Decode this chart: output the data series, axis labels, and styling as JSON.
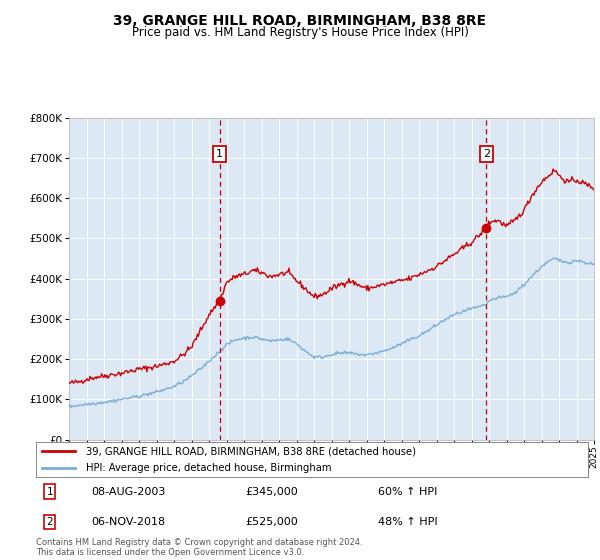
{
  "title": "39, GRANGE HILL ROAD, BIRMINGHAM, B38 8RE",
  "subtitle": "Price paid vs. HM Land Registry's House Price Index (HPI)",
  "title_fontsize": 10,
  "subtitle_fontsize": 8.5,
  "bg_color": "#dce9f5",
  "legend_label_red": "39, GRANGE HILL ROAD, BIRMINGHAM, B38 8RE (detached house)",
  "legend_label_blue": "HPI: Average price, detached house, Birmingham",
  "annotation1_date": "08-AUG-2003",
  "annotation1_price": "£345,000",
  "annotation1_hpi": "60% ↑ HPI",
  "annotation1_year": 2003.6,
  "annotation1_value": 345000,
  "annotation2_date": "06-NOV-2018",
  "annotation2_price": "£525,000",
  "annotation2_hpi": "48% ↑ HPI",
  "annotation2_year": 2018.85,
  "annotation2_value": 525000,
  "footer": "Contains HM Land Registry data © Crown copyright and database right 2024.\nThis data is licensed under the Open Government Licence v3.0.",
  "ylim": [
    0,
    800000
  ],
  "yticks": [
    0,
    100000,
    200000,
    300000,
    400000,
    500000,
    600000,
    700000,
    800000
  ],
  "red_color": "#cc0000",
  "blue_color": "#7aaed6",
  "red_keypoints": [
    [
      1995.0,
      140000
    ],
    [
      1995.5,
      143000
    ],
    [
      1996.0,
      150000
    ],
    [
      1996.5,
      155000
    ],
    [
      1997.0,
      158000
    ],
    [
      1997.5,
      162000
    ],
    [
      1998.0,
      165000
    ],
    [
      1998.5,
      170000
    ],
    [
      1999.0,
      175000
    ],
    [
      1999.5,
      178000
    ],
    [
      2000.0,
      182000
    ],
    [
      2000.5,
      188000
    ],
    [
      2001.0,
      195000
    ],
    [
      2001.5,
      210000
    ],
    [
      2002.0,
      230000
    ],
    [
      2002.5,
      270000
    ],
    [
      2003.0,
      310000
    ],
    [
      2003.6,
      345000
    ],
    [
      2004.0,
      390000
    ],
    [
      2004.5,
      405000
    ],
    [
      2005.0,
      410000
    ],
    [
      2005.5,
      420000
    ],
    [
      2006.0,
      415000
    ],
    [
      2006.5,
      405000
    ],
    [
      2007.0,
      410000
    ],
    [
      2007.5,
      415000
    ],
    [
      2008.0,
      395000
    ],
    [
      2008.5,
      375000
    ],
    [
      2009.0,
      355000
    ],
    [
      2009.5,
      360000
    ],
    [
      2010.0,
      375000
    ],
    [
      2010.5,
      385000
    ],
    [
      2011.0,
      395000
    ],
    [
      2011.5,
      385000
    ],
    [
      2012.0,
      375000
    ],
    [
      2012.5,
      380000
    ],
    [
      2013.0,
      385000
    ],
    [
      2013.5,
      390000
    ],
    [
      2014.0,
      395000
    ],
    [
      2014.5,
      400000
    ],
    [
      2015.0,
      410000
    ],
    [
      2015.5,
      420000
    ],
    [
      2016.0,
      430000
    ],
    [
      2016.5,
      445000
    ],
    [
      2017.0,
      460000
    ],
    [
      2017.5,
      475000
    ],
    [
      2018.0,
      490000
    ],
    [
      2018.5,
      510000
    ],
    [
      2018.85,
      525000
    ],
    [
      2019.0,
      540000
    ],
    [
      2019.5,
      545000
    ],
    [
      2020.0,
      530000
    ],
    [
      2020.5,
      545000
    ],
    [
      2021.0,
      570000
    ],
    [
      2021.5,
      610000
    ],
    [
      2022.0,
      640000
    ],
    [
      2022.5,
      660000
    ],
    [
      2022.8,
      670000
    ],
    [
      2023.0,
      655000
    ],
    [
      2023.5,
      640000
    ],
    [
      2024.0,
      645000
    ],
    [
      2024.5,
      635000
    ],
    [
      2025.0,
      625000
    ]
  ],
  "blue_keypoints": [
    [
      1995.0,
      82000
    ],
    [
      1995.5,
      85000
    ],
    [
      1996.0,
      88000
    ],
    [
      1996.5,
      90000
    ],
    [
      1997.0,
      93000
    ],
    [
      1997.5,
      96000
    ],
    [
      1998.0,
      100000
    ],
    [
      1998.5,
      104000
    ],
    [
      1999.0,
      108000
    ],
    [
      1999.5,
      113000
    ],
    [
      2000.0,
      118000
    ],
    [
      2000.5,
      125000
    ],
    [
      2001.0,
      132000
    ],
    [
      2001.5,
      143000
    ],
    [
      2002.0,
      158000
    ],
    [
      2002.5,
      175000
    ],
    [
      2003.0,
      195000
    ],
    [
      2003.5,
      215000
    ],
    [
      2004.0,
      235000
    ],
    [
      2004.5,
      248000
    ],
    [
      2005.0,
      252000
    ],
    [
      2005.5,
      255000
    ],
    [
      2006.0,
      250000
    ],
    [
      2006.5,
      245000
    ],
    [
      2007.0,
      248000
    ],
    [
      2007.5,
      250000
    ],
    [
      2008.0,
      238000
    ],
    [
      2008.5,
      220000
    ],
    [
      2009.0,
      205000
    ],
    [
      2009.5,
      205000
    ],
    [
      2010.0,
      212000
    ],
    [
      2010.5,
      215000
    ],
    [
      2011.0,
      215000
    ],
    [
      2011.5,
      212000
    ],
    [
      2012.0,
      210000
    ],
    [
      2012.5,
      215000
    ],
    [
      2013.0,
      220000
    ],
    [
      2013.5,
      228000
    ],
    [
      2014.0,
      238000
    ],
    [
      2014.5,
      248000
    ],
    [
      2015.0,
      258000
    ],
    [
      2015.5,
      270000
    ],
    [
      2016.0,
      285000
    ],
    [
      2016.5,
      298000
    ],
    [
      2017.0,
      310000
    ],
    [
      2017.5,
      318000
    ],
    [
      2018.0,
      325000
    ],
    [
      2018.5,
      330000
    ],
    [
      2018.85,
      335000
    ],
    [
      2019.0,
      345000
    ],
    [
      2019.5,
      352000
    ],
    [
      2020.0,
      355000
    ],
    [
      2020.5,
      365000
    ],
    [
      2021.0,
      385000
    ],
    [
      2021.5,
      408000
    ],
    [
      2022.0,
      430000
    ],
    [
      2022.5,
      445000
    ],
    [
      2022.8,
      450000
    ],
    [
      2023.0,
      445000
    ],
    [
      2023.5,
      440000
    ],
    [
      2024.0,
      445000
    ],
    [
      2024.5,
      440000
    ],
    [
      2025.0,
      435000
    ]
  ]
}
